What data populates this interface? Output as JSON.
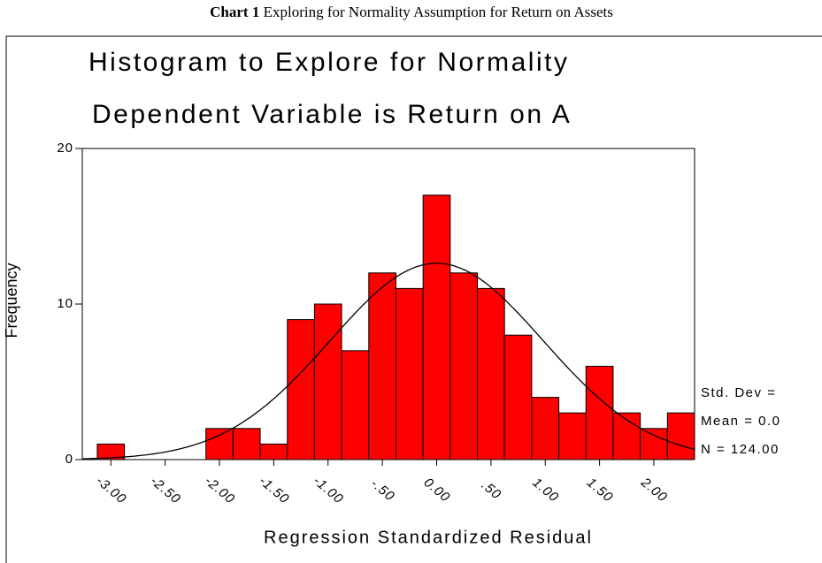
{
  "caption": {
    "label": "Chart 1",
    "text": "Exploring for Normality Assumption for Return on Assets"
  },
  "chart_data": {
    "type": "histogram",
    "title": "Histogram to Explore for Normality",
    "subtitle": "Dependent Variable is Return on A",
    "xlabel": "Regression Standardized Residual",
    "ylabel": "Frequency",
    "bins": [
      -3.125,
      -2.875,
      -2.625,
      -2.375,
      -2.125,
      -1.875,
      -1.625,
      -1.375,
      -1.125,
      -0.875,
      -0.625,
      -0.375,
      -0.125,
      0.125,
      0.375,
      0.625,
      0.875,
      1.125,
      1.375,
      1.625,
      1.875,
      2.125,
      2.375
    ],
    "values": [
      1,
      0,
      0,
      0,
      2,
      2,
      1,
      9,
      10,
      7,
      12,
      11,
      17,
      12,
      11,
      8,
      4,
      3,
      6,
      3,
      2,
      3
    ],
    "color": "#ff0000",
    "xlim": [
      -3.263,
      2.375
    ],
    "xticks": [
      {
        "value": -3,
        "label": "-3.00"
      },
      {
        "value": -2.5,
        "label": "-2.50"
      },
      {
        "value": -2,
        "label": "-2.00"
      },
      {
        "value": -1.5,
        "label": "-1.50"
      },
      {
        "value": -1,
        "label": "-1.00"
      },
      {
        "value": -0.5,
        "label": "-.50"
      },
      {
        "value": 0,
        "label": "0.00"
      },
      {
        "value": 0.5,
        "label": ".50"
      },
      {
        "value": 1,
        "label": "1.00"
      },
      {
        "value": 1.5,
        "label": "1.50"
      },
      {
        "value": 2,
        "label": "2.00"
      }
    ],
    "ylim": [
      0,
      20
    ],
    "yticks": [
      0,
      10,
      20
    ],
    "curve": {
      "mean": 0,
      "std_dev": 0.98,
      "n": 124
    },
    "legend": [
      "Std. Dev =",
      "Mean = 0.0",
      "N = 124.00"
    ]
  }
}
